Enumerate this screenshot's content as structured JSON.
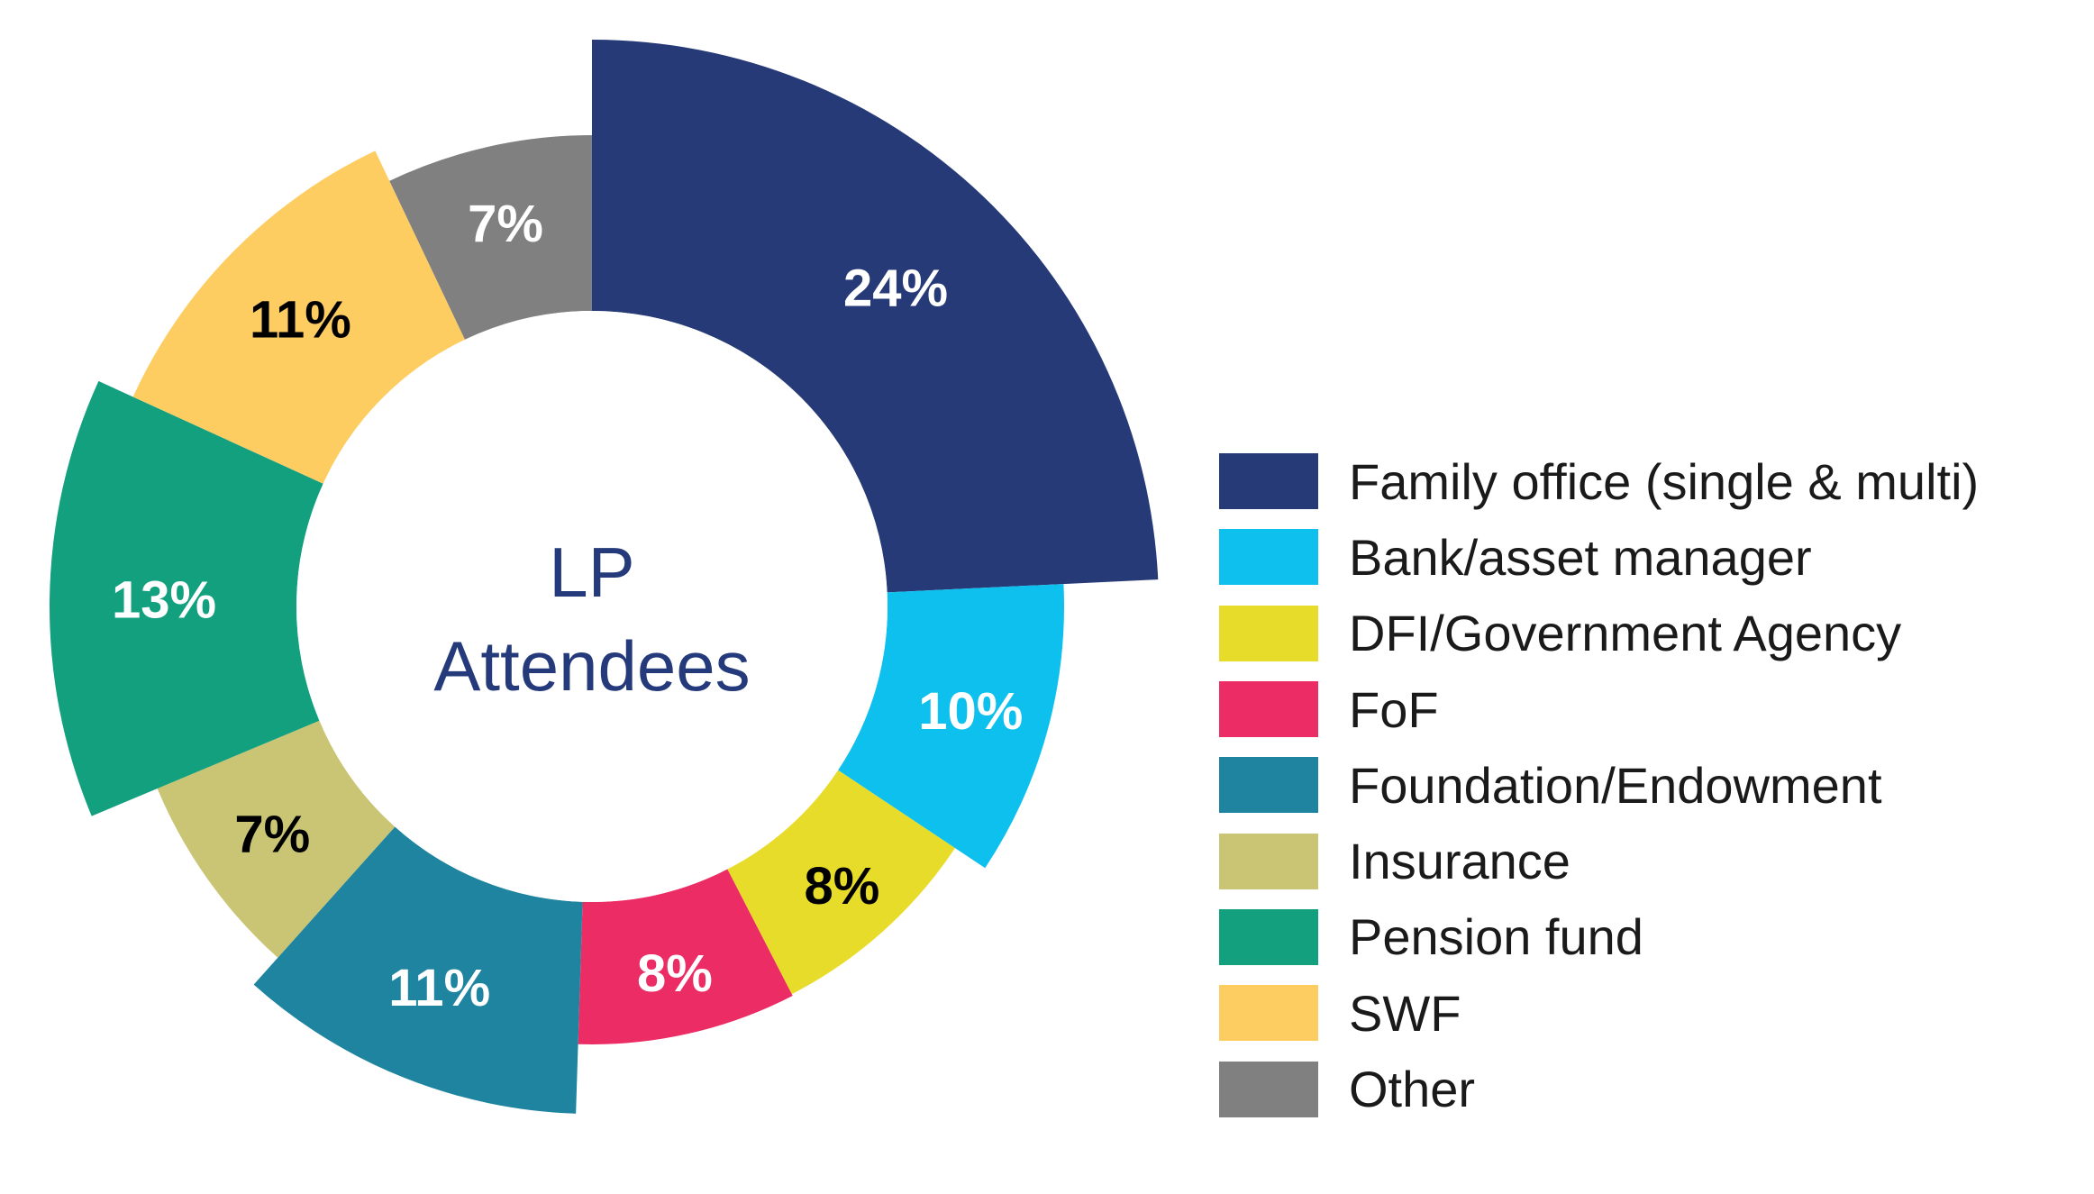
{
  "chart_data": {
    "type": "pie",
    "variant": "donut",
    "title": "LP Attendees",
    "title_lines": [
      "LP",
      "Attendees"
    ],
    "title_color": "#253a7a",
    "legend_position": "right",
    "categories": [
      "Family office (single & multi)",
      "Bank/asset manager",
      "DFI/Government Agency",
      "FoF",
      "Foundation/Endowment",
      "Insurance",
      "Pension fund",
      "SWF",
      "Other"
    ],
    "values": [
      24,
      10,
      8,
      8,
      11,
      7,
      13,
      11,
      7
    ],
    "labels": [
      "24%",
      "10%",
      "8%",
      "8%",
      "11%",
      "7%",
      "13%",
      "11%",
      "7%"
    ],
    "colors": [
      "#263a78",
      "#0ec0ee",
      "#e8dc2a",
      "#ec2c64",
      "#1e84a0",
      "#c9c574",
      "#12a07e",
      "#fdcd62",
      "#808080"
    ],
    "label_colors": [
      "#ffffff",
      "#ffffff",
      "#000000",
      "#ffffff",
      "#ffffff",
      "#000000",
      "#ffffff",
      "#000000",
      "#ffffff"
    ]
  }
}
